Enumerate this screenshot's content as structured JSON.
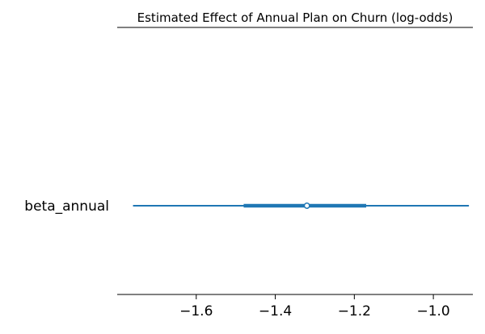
{
  "chart_data": {
    "type": "forest",
    "title": "Estimated Effect of Annual Plan on Churn (log-odds)",
    "xlabel": "",
    "ylabel": "",
    "xlim": [
      -1.8,
      -0.9
    ],
    "xticks": [
      -1.6,
      -1.4,
      -1.2,
      -1.0
    ],
    "xtick_labels": [
      "−1.6",
      "−1.4",
      "−1.2",
      "−1.0"
    ],
    "grid": false,
    "series": [
      {
        "name": "beta_annual",
        "point_estimate": -1.32,
        "hdi_outer": [
          -1.76,
          -0.91
        ],
        "hdi_inner": [
          -1.48,
          -1.17
        ]
      }
    ],
    "colors": {
      "series": "#1f77b4",
      "marker_face": "#ffffff",
      "axis": "#000000"
    }
  }
}
